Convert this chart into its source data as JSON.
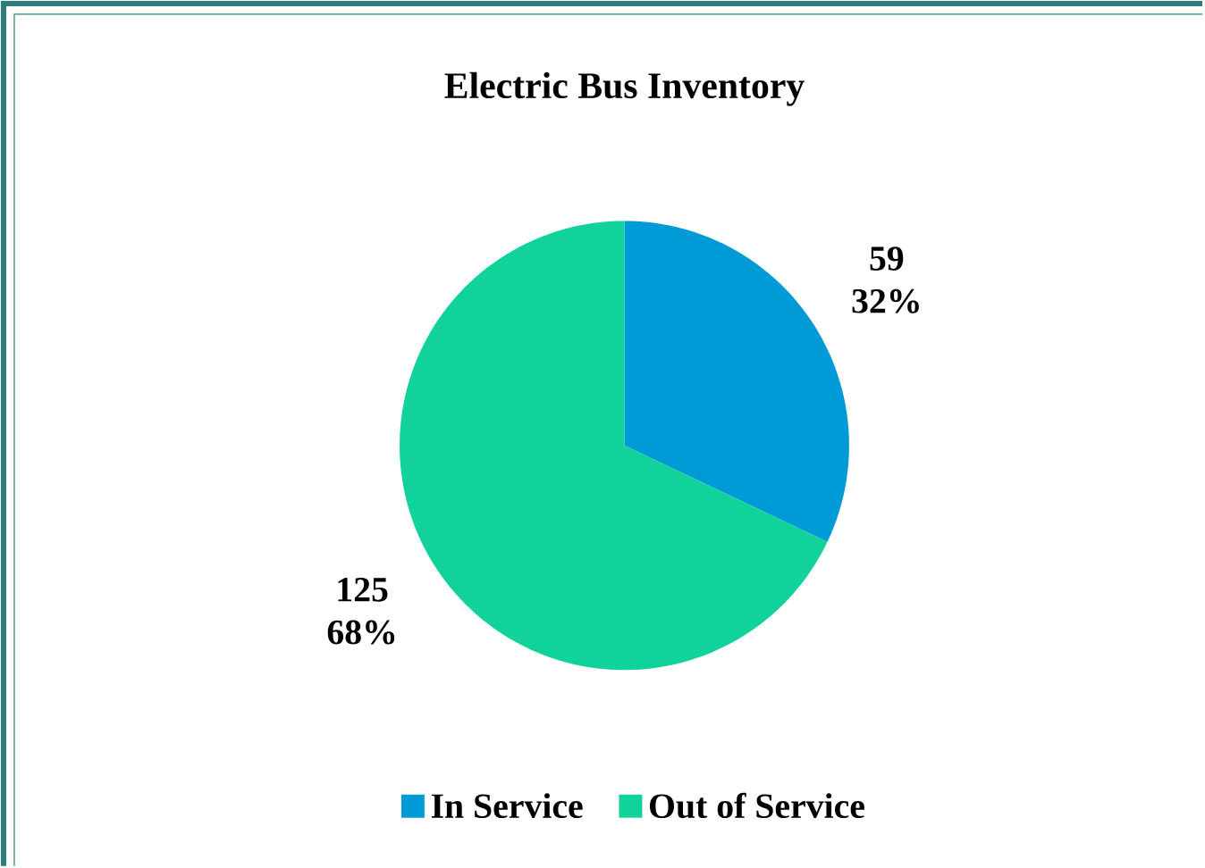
{
  "chart_data": {
    "type": "pie",
    "title": "Electric Bus Inventory",
    "categories": [
      "In Service",
      "Out of Service"
    ],
    "values": [
      59,
      125
    ],
    "colors": [
      "#009ad6",
      "#12d29c"
    ],
    "value_labels": [
      "59",
      "125"
    ],
    "annotations": [
      "32%",
      "68%"
    ],
    "legend": "bottom"
  }
}
